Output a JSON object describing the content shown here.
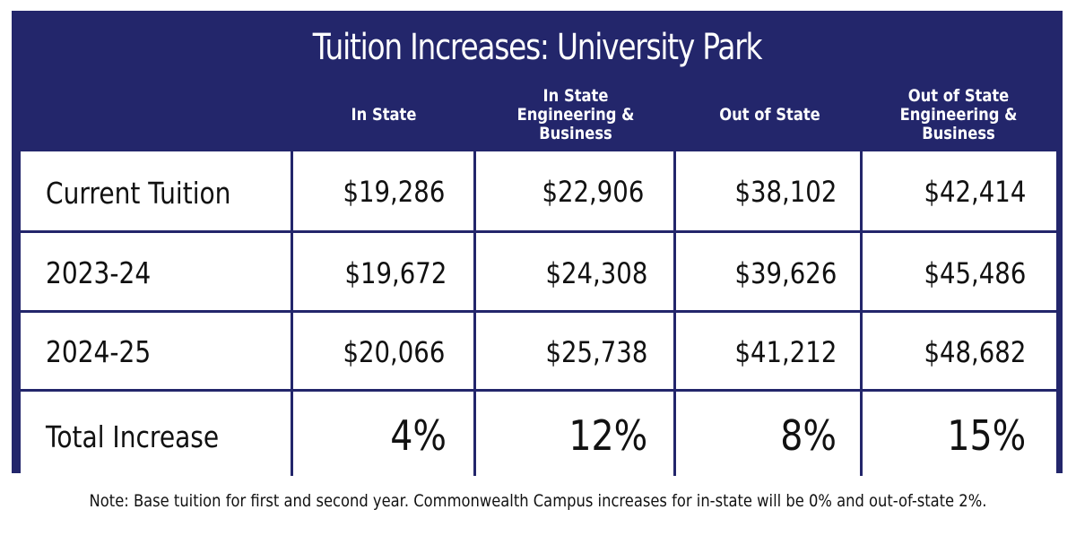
{
  "title": "Tuition Increases: University Park",
  "colors": {
    "header_bg": "#23266b",
    "cell_bg": "#ffffff",
    "text_dark": "#111111",
    "text_light": "#ffffff"
  },
  "columns": [
    "In State",
    "In State\nEngineering &\nBusiness",
    "Out of State",
    "Out of State\nEngineering &\nBusiness"
  ],
  "rows": [
    {
      "label": "Current Tuition",
      "values": [
        "$19,286",
        "$22,906",
        "$38,102",
        "$42,414"
      ]
    },
    {
      "label": "2023-24",
      "values": [
        "$19,672",
        "$24,308",
        "$39,626",
        "$45,486"
      ]
    },
    {
      "label": "2024-25",
      "values": [
        "$20,066",
        "$25,738",
        "$41,212",
        "$48,682"
      ]
    },
    {
      "label": "Total Increase",
      "values": [
        "4%",
        "12%",
        "8%",
        "15%"
      ]
    }
  ],
  "note": "Note: Base tuition for first and second year. Commonwealth Campus increases for in-state will be 0% and out-of-state 2%."
}
